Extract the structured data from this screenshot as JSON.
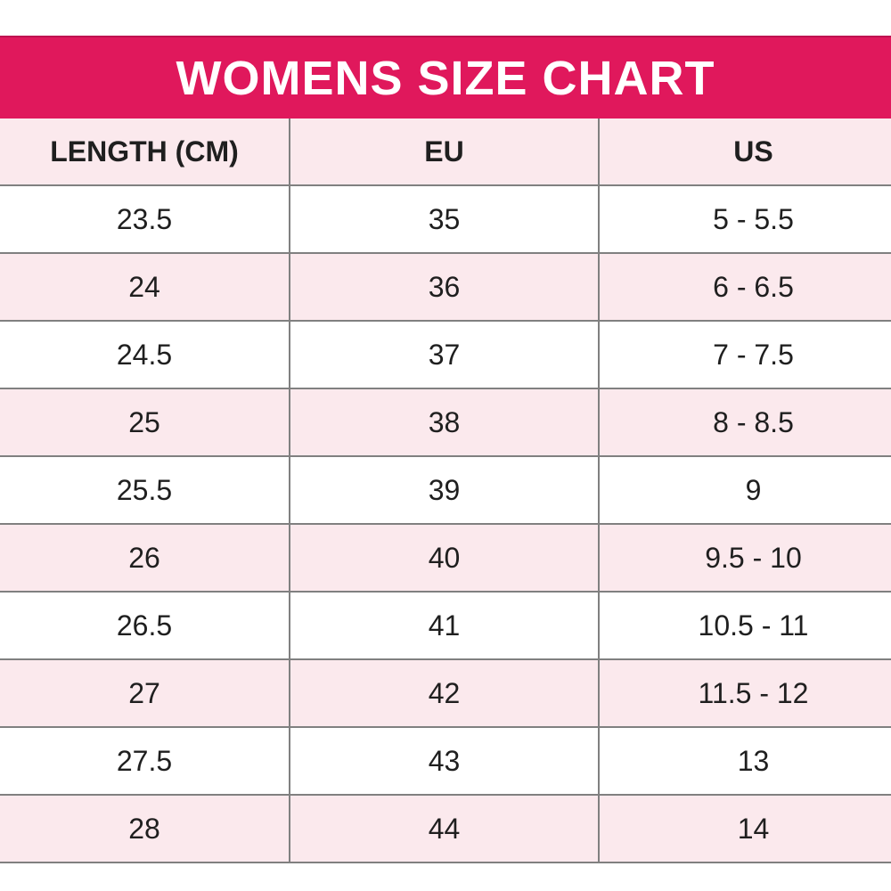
{
  "title": "WOMENS SIZE CHART",
  "colors": {
    "band": "#E0185C",
    "band_edge": "#BE1350",
    "row_pink": "#FBE9ED",
    "row_white": "#FFFFFF",
    "grid_line": "#808080",
    "title_text": "#FFFFFF",
    "cell_text": "#1F1F1F"
  },
  "chart_data": {
    "type": "table",
    "title": "WOMENS SIZE CHART",
    "columns": [
      "LENGTH (CM)",
      "EU",
      "US"
    ],
    "rows": [
      [
        "23.5",
        "35",
        "5 - 5.5"
      ],
      [
        "24",
        "36",
        "6 - 6.5"
      ],
      [
        "24.5",
        "37",
        "7 - 7.5"
      ],
      [
        "25",
        "38",
        "8 - 8.5"
      ],
      [
        "25.5",
        "39",
        "9"
      ],
      [
        "26",
        "40",
        "9.5 - 10"
      ],
      [
        "26.5",
        "41",
        "10.5 - 11"
      ],
      [
        "27",
        "42",
        "11.5 - 12"
      ],
      [
        "27.5",
        "43",
        "13"
      ],
      [
        "28",
        "44",
        "14"
      ]
    ],
    "layout": {
      "alternating_rows": true,
      "grid": true,
      "right_column_cropped_at_viewport_edge": true
    }
  }
}
